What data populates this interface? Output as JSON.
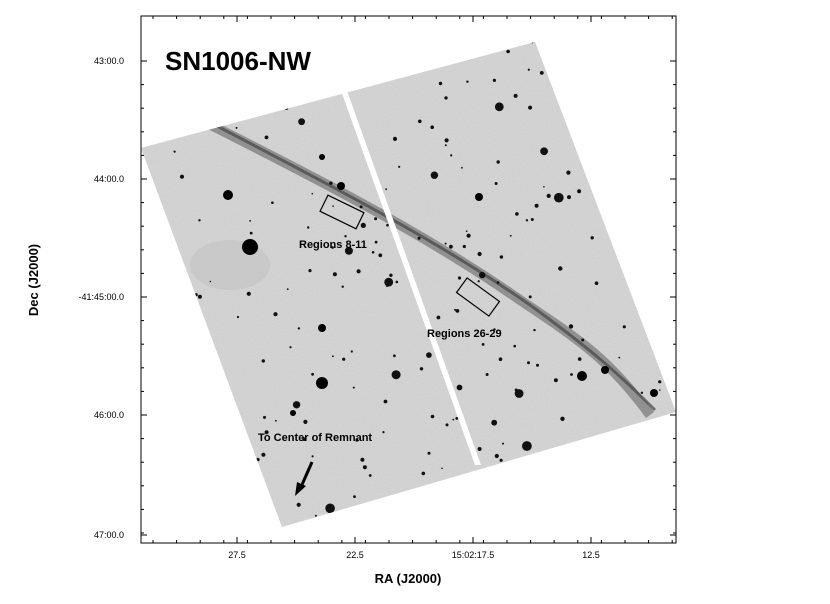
{
  "title": "SN1006-NW",
  "x_axis": {
    "label": "RA (J2000)",
    "ticks": [
      "27.5",
      "22.5",
      "15:02:17.5",
      "12.5"
    ]
  },
  "y_axis": {
    "label": "Dec (J2000)",
    "ticks": [
      "43:00.0",
      "44:00.0",
      "-41:45:00.0",
      "46:00.0",
      "47:00.0"
    ]
  },
  "annotations": [
    "Regions 8-11",
    "Regions 26-29",
    "To Center of Remnant"
  ]
}
